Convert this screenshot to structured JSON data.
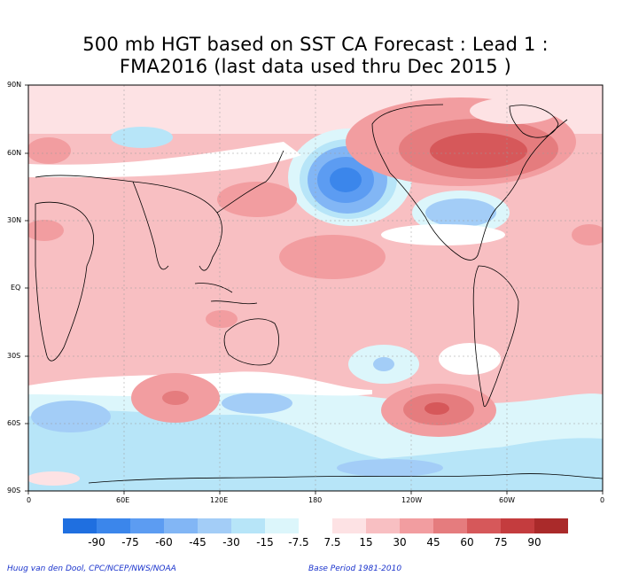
{
  "title_line1": "500 mb HGT based on SST CA Forecast : Lead 1 :",
  "title_line2": "FMA2016 (last data used thru Dec 2015 )",
  "lat_labels": [
    "90N",
    "60N",
    "30N",
    "EQ",
    "30S",
    "60S",
    "90S"
  ],
  "lon_labels": [
    "0",
    "60E",
    "120E",
    "180",
    "120W",
    "60W",
    "0"
  ],
  "legend": {
    "labels": [
      "-90",
      "-75",
      "-60",
      "-45",
      "-30",
      "-15",
      "-7.5",
      "7.5",
      "15",
      "30",
      "45",
      "60",
      "75",
      "90"
    ],
    "colors": [
      "#1f6fe0",
      "#3b86eb",
      "#5c9cf2",
      "#82b6f5",
      "#a3cdf7",
      "#b7e5f8",
      "#dcf6fb",
      "#ffffff",
      "#fde2e4",
      "#f8bfc2",
      "#f29da0",
      "#e57c7e",
      "#d6585a",
      "#c43c3e",
      "#aa2a2a"
    ]
  },
  "footer": {
    "credit": "Huug van den Dool, CPC/NCEP/NWS/NOAA",
    "base_period": "Base Period 1981-2010"
  }
}
